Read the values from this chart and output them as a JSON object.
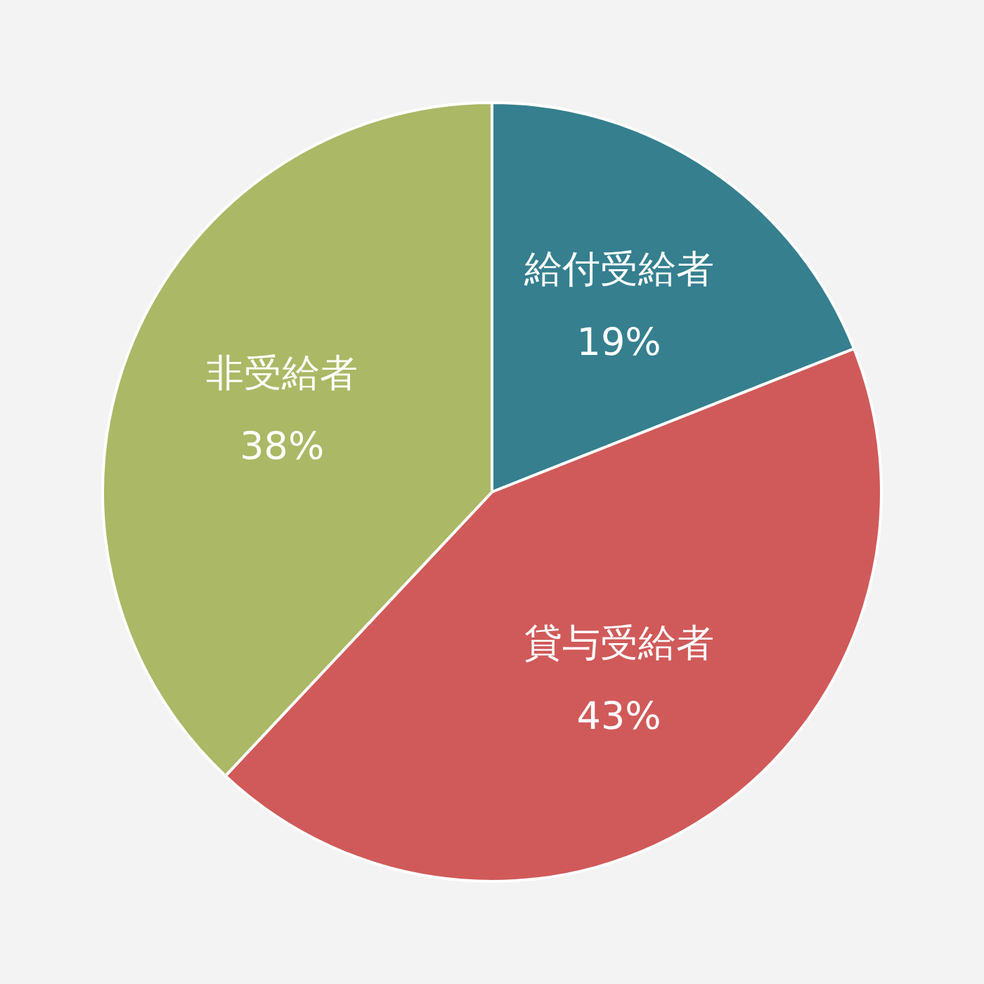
{
  "chart_data": {
    "type": "pie",
    "categories": [
      "給付受給者",
      "貸与受給者",
      "非受給者"
    ],
    "values": [
      19,
      43,
      38
    ],
    "colors": [
      "#357f8f",
      "#d05a59",
      "#abb865"
    ],
    "value_labels": [
      "19%",
      "43%",
      "38%"
    ]
  }
}
